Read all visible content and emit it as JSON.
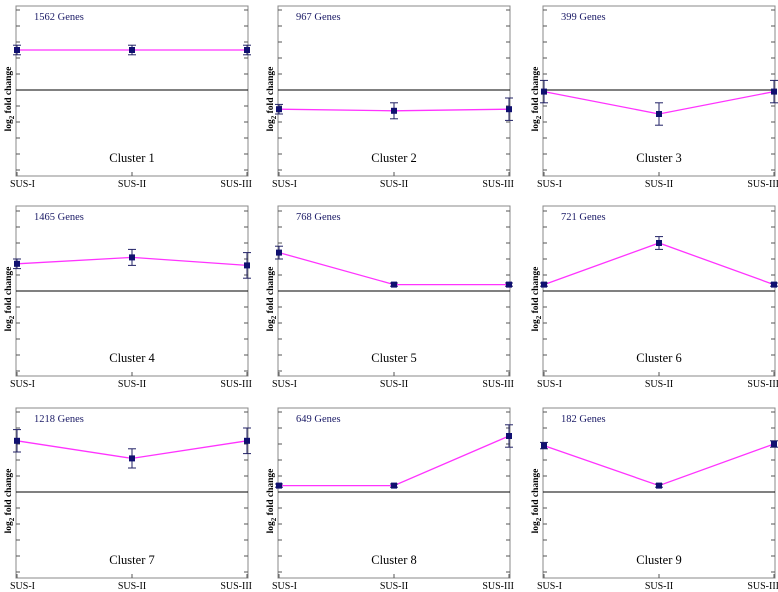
{
  "chart_data": {
    "type": "line",
    "layout": "3x3 grid of small multiples",
    "ylabel": "log2 fold change",
    "ylabel_base": "log",
    "ylabel_sub": "2",
    "ylabel_rest": " fold change",
    "categories": [
      "SUS-I",
      "SUS-II",
      "SUS-III"
    ],
    "ylim": [
      -5,
      5
    ],
    "colors": {
      "line": "#ff33ff",
      "point": "#101070",
      "zero": "#000000"
    },
    "clusters": [
      {
        "title": "Cluster 1",
        "genes": "1562 Genes",
        "values": [
          2.5,
          2.5,
          2.5
        ],
        "errors": [
          0.3,
          0.3,
          0.3
        ]
      },
      {
        "title": "Cluster 2",
        "genes": "967 Genes",
        "values": [
          -1.2,
          -1.3,
          -1.2
        ],
        "errors": [
          0.3,
          0.5,
          0.7
        ]
      },
      {
        "title": "Cluster 3",
        "genes": "399 Genes",
        "values": [
          -0.1,
          -1.5,
          -0.1
        ],
        "errors": [
          0.7,
          0.7,
          0.7
        ]
      },
      {
        "title": "Cluster 4",
        "genes": "1465 Genes",
        "values": [
          1.7,
          2.1,
          1.6
        ],
        "errors": [
          0.3,
          0.5,
          0.8
        ]
      },
      {
        "title": "Cluster 5",
        "genes": "768 Genes",
        "values": [
          2.4,
          0.4,
          0.4
        ],
        "errors": [
          0.4,
          0.1,
          0.1
        ]
      },
      {
        "title": "Cluster 6",
        "genes": "721 Genes",
        "values": [
          0.4,
          3.0,
          0.4
        ],
        "errors": [
          0.1,
          0.4,
          0.1
        ]
      },
      {
        "title": "Cluster 7",
        "genes": "1218 Genes",
        "values": [
          3.2,
          2.1,
          3.2
        ],
        "errors": [
          0.7,
          0.6,
          0.8
        ]
      },
      {
        "title": "Cluster 8",
        "genes": "649 Genes",
        "values": [
          0.4,
          0.4,
          3.5
        ],
        "errors": [
          0.1,
          0.1,
          0.7
        ]
      },
      {
        "title": "Cluster 9",
        "genes": "182 Genes",
        "values": [
          2.9,
          0.4,
          3.0
        ],
        "errors": [
          0.2,
          0.1,
          0.2
        ]
      }
    ]
  }
}
